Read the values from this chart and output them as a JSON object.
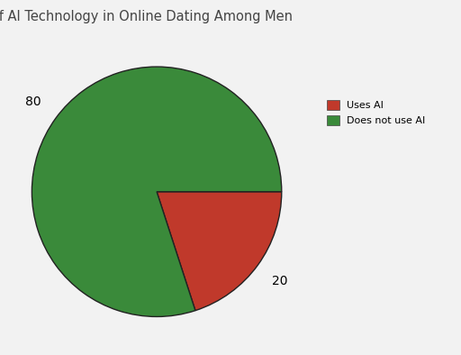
{
  "title": "Adoption of AI Technology in Online Dating Among Men",
  "slices": [
    20,
    80
  ],
  "colors": [
    "#c0392b",
    "#3a8a3a"
  ],
  "legend_labels": [
    "Uses AI",
    "Does not use AI"
  ],
  "legend_colors": [
    "#c0392b",
    "#3a8a3a"
  ],
  "startangle": 0,
  "background_color": "#f2f2f2",
  "title_fontsize": 10.5,
  "pctdistance": 1.22,
  "label_fontsize": 10
}
